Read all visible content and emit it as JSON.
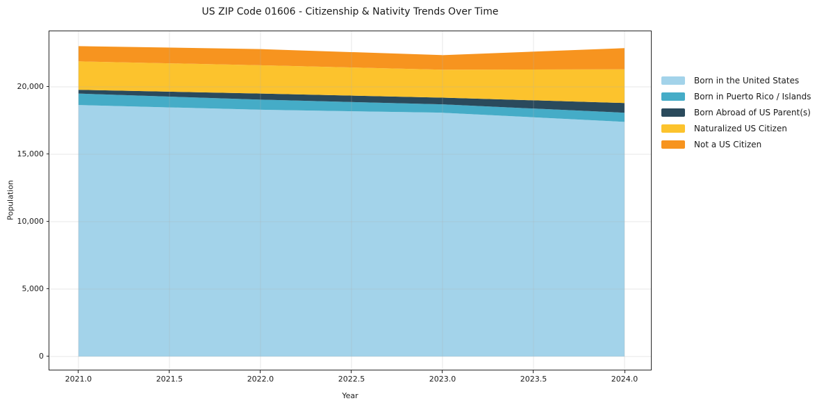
{
  "title": "US ZIP Code 01606 - Citizenship & Nativity Trends Over Time",
  "chart_data": {
    "type": "area",
    "stacked": true,
    "title": "US ZIP Code 01606 - Citizenship & Nativity Trends Over Time",
    "xlabel": "Year",
    "ylabel": "Population",
    "x": [
      2021,
      2022,
      2023,
      2024
    ],
    "series": [
      {
        "name": "Born in the United States",
        "color": "#A3D3EA",
        "values": [
          18650,
          18300,
          18080,
          17400
        ]
      },
      {
        "name": "Born in Puerto Rico / Islands",
        "color": "#45ACC7",
        "values": [
          850,
          750,
          620,
          680
        ]
      },
      {
        "name": "Born Abroad of US Parent(s)",
        "color": "#2A4A5C",
        "values": [
          280,
          450,
          500,
          720
        ]
      },
      {
        "name": "Naturalized US Citizen",
        "color": "#FCC32D",
        "values": [
          2110,
          2100,
          2070,
          2500
        ]
      },
      {
        "name": "Not a US Citizen",
        "color": "#F7941F",
        "values": [
          1130,
          1200,
          1080,
          1570
        ]
      }
    ],
    "stack_totals": [
      23020,
      22800,
      22350,
      22870
    ],
    "x_ticks": {
      "values": [
        2021.0,
        2021.5,
        2022.0,
        2022.5,
        2023.0,
        2023.5,
        2024.0
      ],
      "labels": [
        "2021.0",
        "2021.5",
        "2022.0",
        "2022.5",
        "2023.0",
        "2023.5",
        "2024.0"
      ]
    },
    "y_ticks": {
      "values": [
        0,
        5000,
        10000,
        15000,
        20000
      ],
      "labels": [
        "0",
        "5,000",
        "10,000",
        "15,000",
        "20,000"
      ]
    },
    "xlim": [
      2020.84,
      2024.145
    ],
    "ylim": [
      -980,
      24120
    ],
    "grid": true,
    "grid_color": "#b0b0b0",
    "grid_alpha": 0.3,
    "legend_position": "right",
    "spine_color": "#262626"
  }
}
